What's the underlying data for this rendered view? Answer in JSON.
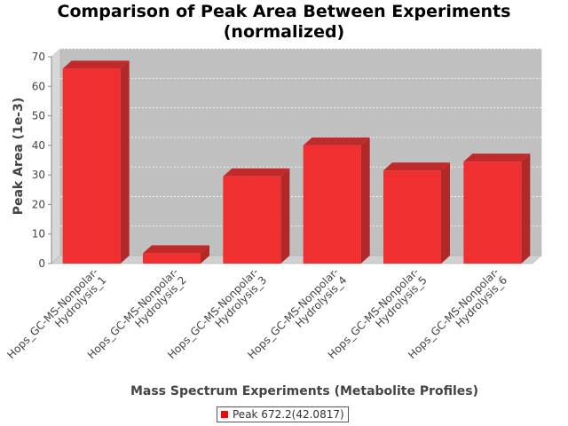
{
  "chart_data": {
    "type": "bar",
    "title_line1": "Comparison of Peak Area Between Experiments",
    "title_line2": "(normalized)",
    "xlabel": "Mass Spectrum Experiments (Metabolite Profiles)",
    "ylabel": "Peak Area (1e-3)",
    "ylim": [
      0,
      70
    ],
    "yticks": [
      "0",
      "10",
      "20",
      "30",
      "40",
      "50",
      "60",
      "70"
    ],
    "grid": true,
    "legend_position": "bottom",
    "categories": [
      [
        "Hops_GC-MS-Nonpolar-",
        "Hydrolysis_1"
      ],
      [
        "Hops_GC-MS-Nonpolar-",
        "Hydrolysis_2"
      ],
      [
        "Hops_GC-MS-Nonpolar-",
        "Hydrolysis_3"
      ],
      [
        "Hops_GC-MS-Nonpolar-",
        "Hydrolysis_4"
      ],
      [
        "Hops_GC-MS-Nonpolar-",
        "Hydrolysis_5"
      ],
      [
        "Hops_GC-MS-Nonpolar-",
        "Hydrolysis_6"
      ]
    ],
    "series": [
      {
        "name": "Peak 672.2(42.0817)",
        "color": "#ff0000",
        "values": [
          66,
          3.5,
          29.5,
          40,
          31.5,
          34.5
        ]
      }
    ]
  }
}
